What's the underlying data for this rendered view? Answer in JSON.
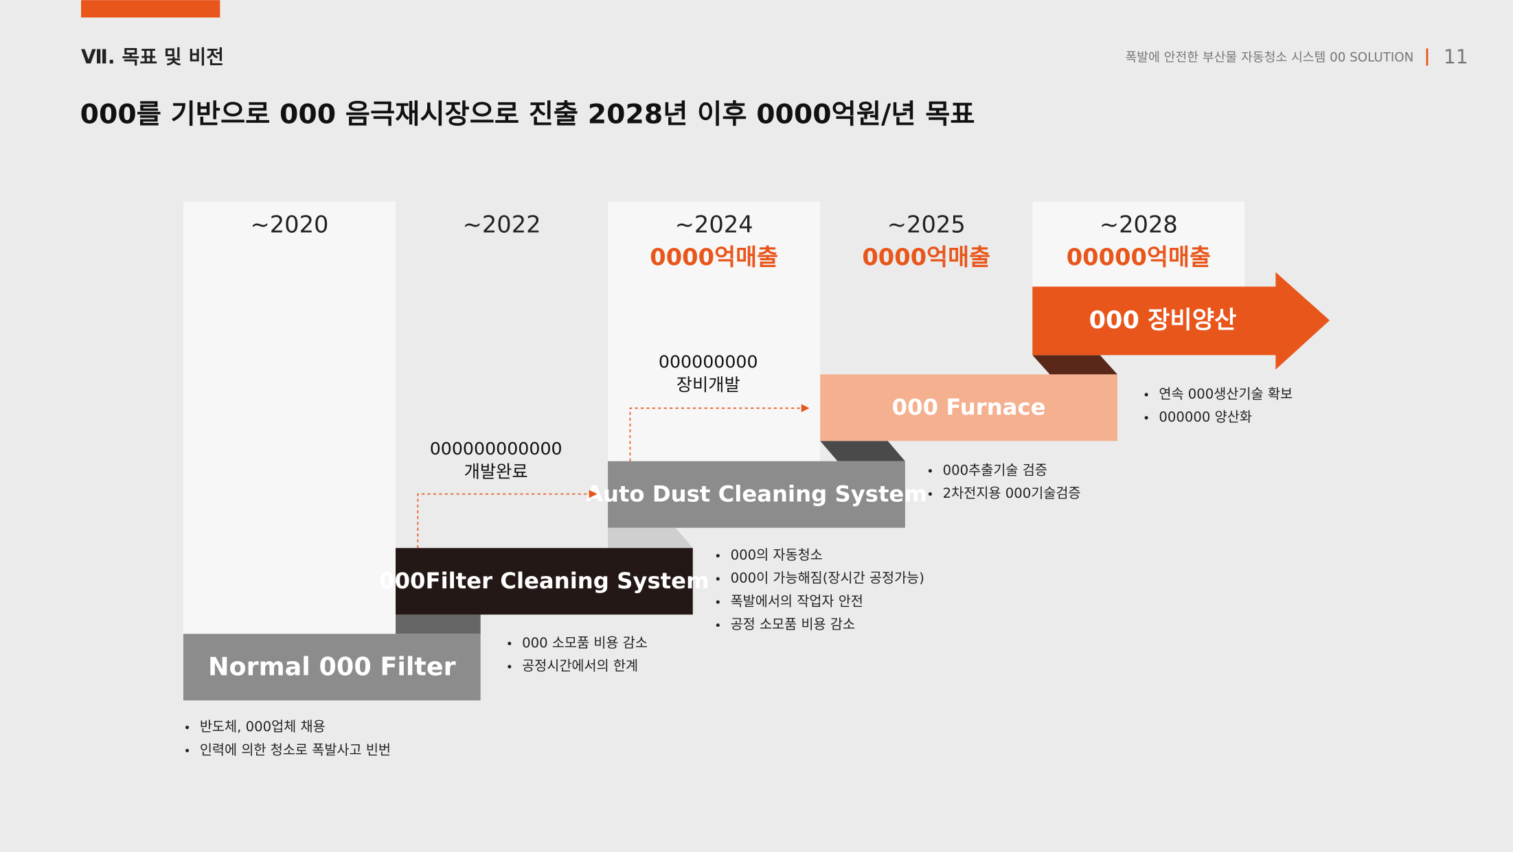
{
  "header": {
    "section": "Ⅶ. 목표 및 비전",
    "doc_title": "폭발에 안전한 부산물 자동청소 시스템 00 SOLUTION",
    "page": "11"
  },
  "headline": "000를 기반으로 000 음극재시장으로 진출 2028년 이후 0000억원/년 목표",
  "columns": [
    {
      "year": "~2020"
    },
    {
      "year": "~2022"
    },
    {
      "year": "~2024",
      "sales": "0000억매출"
    },
    {
      "year": "~2025",
      "sales": "0000억매출"
    },
    {
      "year": "~2028",
      "sales": "00000억매출"
    }
  ],
  "stages": [
    {
      "label": "Normal 000 Filter",
      "bullets": [
        "반도체, 000업체 채용",
        "인력에 의한 청소로 폭발사고 빈번"
      ]
    },
    {
      "label": "000Filter Cleaning System",
      "bullets": [
        "000 소모품 비용 감소",
        "공정시간에서의 한계"
      ]
    },
    {
      "label": "Auto Dust Cleaning System",
      "bullets": [
        "000의 자동청소",
        "000이 가능해짐(장시간 공정가능)",
        "폭발에서의 작업자 안전",
        "공정 소모품 비용 감소"
      ]
    },
    {
      "label": "000 Furnace",
      "bullets": [
        "000추출기술 검증",
        "2차전지용 000기술검증"
      ]
    },
    {
      "label": "000 장비양산",
      "bullets": [
        "연속 000생산기술 확보",
        "000000 양산화"
      ]
    }
  ],
  "milestones": [
    {
      "lines": [
        "000000000000",
        "개발완료"
      ]
    },
    {
      "lines": [
        "000000000",
        "장비개발"
      ]
    }
  ]
}
